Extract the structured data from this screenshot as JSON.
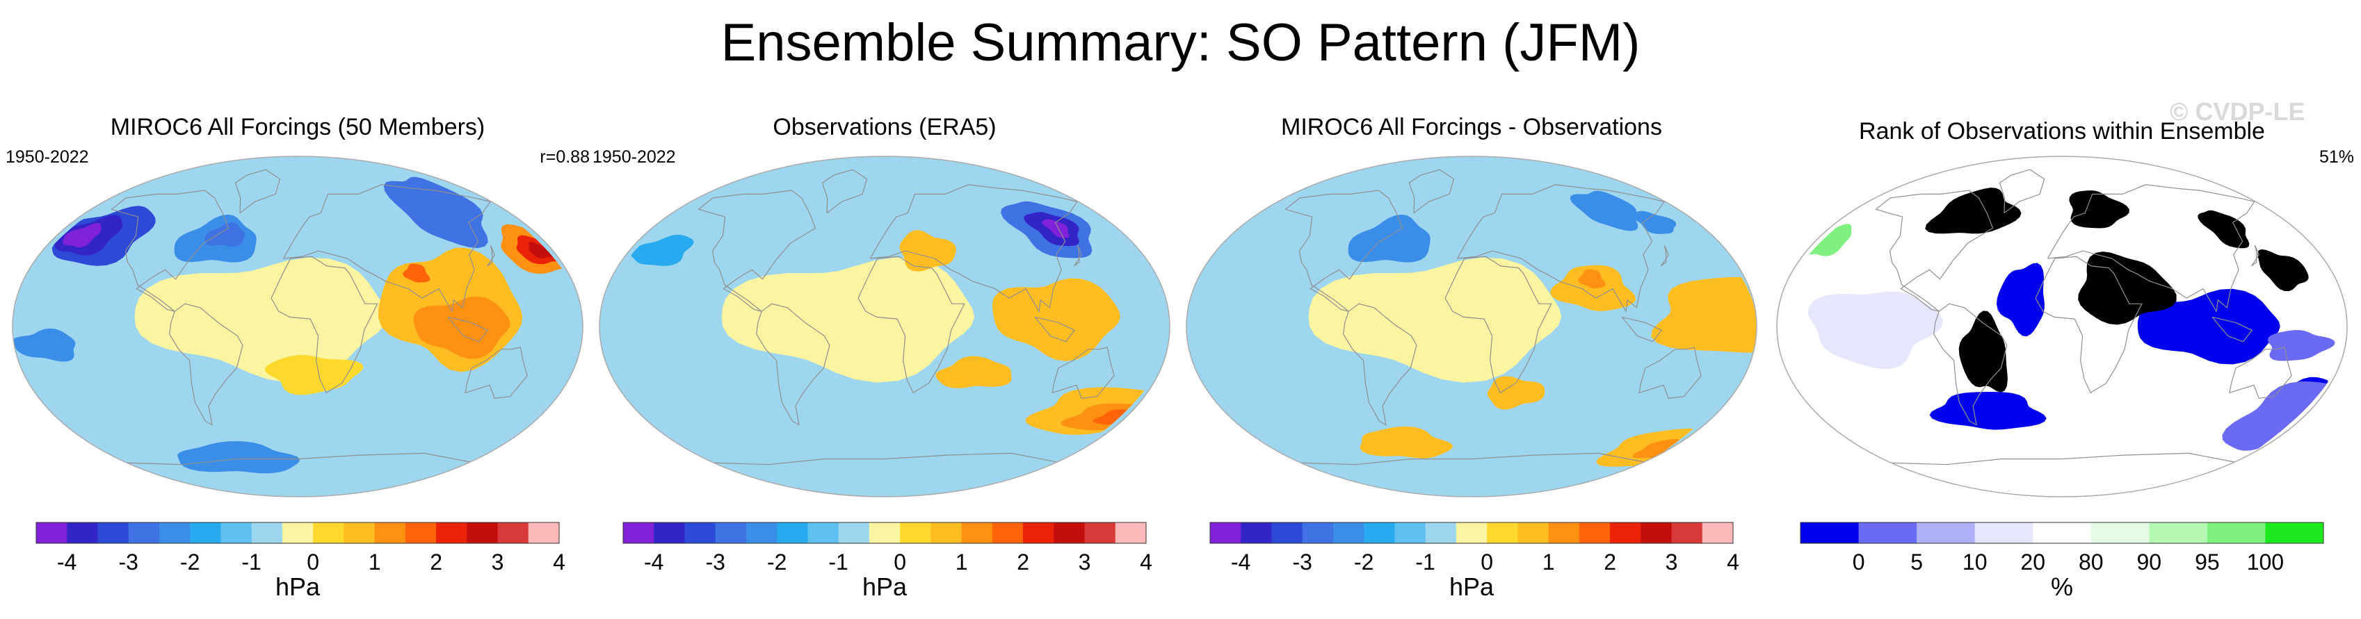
{
  "title": "Ensemble Summary: SO Pattern (JFM)",
  "watermark": "© CVDP-LE",
  "panels": [
    {
      "title": "MIROC6 All Forcings (50 Members)",
      "years": "1950-2022",
      "stat": "r=0.88",
      "colorbar": "anomaly",
      "unit": "hPa",
      "field": [
        {
          "level": 11,
          "lon": 175,
          "lat": 40,
          "rlon": 28,
          "rlat": 12
        },
        {
          "level": 13,
          "lon": 175,
          "lat": 40,
          "rlon": 17,
          "rlat": 7
        },
        {
          "level": 14,
          "lon": 175,
          "lat": 40,
          "rlon": 8,
          "rlat": 4
        },
        {
          "level": 3,
          "lon": 125,
          "lat": 62,
          "rlon": 35,
          "rlat": 18
        },
        {
          "level": 2,
          "lon": -150,
          "lat": 48,
          "rlon": 35,
          "rlat": 15
        },
        {
          "level": 1,
          "lon": -160,
          "lat": 48,
          "rlon": 22,
          "rlat": 10
        },
        {
          "level": 0,
          "lon": -165,
          "lat": 48,
          "rlon": 12,
          "rlat": 6
        },
        {
          "level": 4,
          "lon": -60,
          "lat": 45,
          "rlon": 30,
          "rlat": 12
        },
        {
          "level": 3,
          "lon": -55,
          "lat": 48,
          "rlon": 15,
          "rlat": 6
        },
        {
          "level": 10,
          "lon": 100,
          "lat": 10,
          "rlon": 45,
          "rlat": 30
        },
        {
          "level": 11,
          "lon": 105,
          "lat": 0,
          "rlon": 30,
          "rlat": 15
        },
        {
          "level": 12,
          "lon": 80,
          "lat": 28,
          "rlon": 8,
          "rlat": 5
        },
        {
          "level": 4,
          "lon": -160,
          "lat": -10,
          "rlon": 20,
          "rlat": 8
        },
        {
          "level": 4,
          "lon": -60,
          "lat": -70,
          "rlon": 60,
          "rlat": 8
        },
        {
          "level": 9,
          "lon": 10,
          "lat": -25,
          "rlon": 30,
          "rlat": 10
        }
      ]
    },
    {
      "title": "Observations (ERA5)",
      "years": "1950-2022",
      "stat": "",
      "colorbar": "anomaly",
      "unit": "hPa",
      "field": [
        {
          "level": 10,
          "lon": 170,
          "lat": -45,
          "rlon": 60,
          "rlat": 12
        },
        {
          "level": 11,
          "lon": 175,
          "lat": -48,
          "rlon": 35,
          "rlat": 7
        },
        {
          "level": 12,
          "lon": 178,
          "lat": -48,
          "rlon": 15,
          "rlat": 4
        },
        {
          "level": 3,
          "lon": 132,
          "lat": 52,
          "rlon": 30,
          "rlat": 15
        },
        {
          "level": 1,
          "lon": 135,
          "lat": 52,
          "rlon": 18,
          "rlat": 9
        },
        {
          "level": 0,
          "lon": 137,
          "lat": 52,
          "rlon": 8,
          "rlat": 5
        },
        {
          "level": 5,
          "lon": -160,
          "lat": 40,
          "rlon": 20,
          "rlat": 8
        },
        {
          "level": 10,
          "lon": 110,
          "lat": 5,
          "rlon": 40,
          "rlat": 20
        },
        {
          "level": 10,
          "lon": 30,
          "lat": 40,
          "rlon": 20,
          "rlat": 10
        },
        {
          "level": 10,
          "lon": 60,
          "lat": -25,
          "rlon": 25,
          "rlat": 8
        }
      ]
    },
    {
      "title": "MIROC6 All Forcings - Observations",
      "years": "",
      "stat": "",
      "colorbar": "anomaly",
      "unit": "hPa",
      "field": [
        {
          "level": 10,
          "lon": 175,
          "lat": 5,
          "rlon": 60,
          "rlat": 20
        },
        {
          "level": 10,
          "lon": 80,
          "lat": 20,
          "rlon": 25,
          "rlat": 12
        },
        {
          "level": 11,
          "lon": 80,
          "lat": 25,
          "rlon": 8,
          "rlat": 5
        },
        {
          "level": 10,
          "lon": 30,
          "lat": -35,
          "rlon": 20,
          "rlat": 8
        },
        {
          "level": 10,
          "lon": 175,
          "lat": -65,
          "rlon": 50,
          "rlat": 10
        },
        {
          "level": 11,
          "lon": 175,
          "lat": -65,
          "rlon": 20,
          "rlat": 5
        },
        {
          "level": 10,
          "lon": -60,
          "lat": -62,
          "rlon": 40,
          "rlat": 8
        },
        {
          "level": 4,
          "lon": -60,
          "lat": 45,
          "rlon": 30,
          "rlat": 12
        },
        {
          "level": 4,
          "lon": 120,
          "lat": 62,
          "rlon": 25,
          "rlat": 10
        },
        {
          "level": 4,
          "lon": 150,
          "lat": 55,
          "rlon": 15,
          "rlat": 6
        }
      ]
    },
    {
      "title": "Rank of Observations within Ensemble",
      "years": "",
      "stat": "51%",
      "colorbar": "rank",
      "unit": "%",
      "field": [
        {
          "level": 0,
          "lon": 95,
          "lat": 0,
          "rlon": 45,
          "rlat": 18
        },
        {
          "level": 1,
          "lon": 150,
          "lat": -10,
          "rlon": 20,
          "rlat": 8
        },
        {
          "level": 0,
          "lon": -55,
          "lat": -45,
          "rlon": 40,
          "rlat": 10
        },
        {
          "level": 0,
          "lon": -25,
          "lat": 15,
          "rlon": 15,
          "rlat": 18
        },
        {
          "level": 0,
          "lon": 175,
          "lat": -40,
          "rlon": 25,
          "rlat": 12
        },
        {
          "level": 1,
          "lon": 175,
          "lat": -48,
          "rlon": 40,
          "rlat": 18
        },
        {
          "level": 3,
          "lon": -120,
          "lat": 0,
          "rlon": 40,
          "rlat": 20
        },
        {
          "level": 9,
          "lon": 130,
          "lat": 52,
          "rlon": 15,
          "rlat": 10
        },
        {
          "level": 9,
          "lon": 30,
          "lat": 62,
          "rlon": 25,
          "rlat": 10
        },
        {
          "level": 9,
          "lon": -75,
          "lat": 60,
          "rlon": 35,
          "rlat": 12
        },
        {
          "level": 9,
          "lon": -50,
          "lat": -15,
          "rlon": 15,
          "rlat": 20
        },
        {
          "level": 9,
          "lon": 40,
          "lat": 20,
          "rlon": 30,
          "rlat": 18
        },
        {
          "level": 9,
          "lon": 150,
          "lat": 30,
          "rlon": 15,
          "rlat": 10
        },
        {
          "level": 7,
          "lon": -175,
          "lat": 45,
          "rlon": 15,
          "rlat": 8
        }
      ]
    }
  ],
  "colorbars": {
    "anomaly": {
      "colors": [
        "#8022d8",
        "#3324c8",
        "#2d4ad6",
        "#3f72e2",
        "#3a8ee8",
        "#29aaee",
        "#5ec0ee",
        "#9fd6ef",
        "#fbf4a0",
        "#ffd82e",
        "#ffbd22",
        "#ff9112",
        "#ff6508",
        "#e92208",
        "#c40e0c",
        "#d83a3a",
        "#fbb8b8"
      ],
      "labels": [
        "-4",
        "-3",
        "-2",
        "-1",
        "0",
        "1",
        "2",
        "3",
        "4"
      ],
      "label_edges": [
        1,
        3,
        5,
        7,
        9,
        11,
        13,
        15,
        17
      ]
    },
    "rank": {
      "colors": [
        "#0000ee",
        "#6a6af4",
        "#b0b0f8",
        "#e6e6fc",
        "#ffffff",
        "#e4fce4",
        "#b4f8b4",
        "#80f080",
        "#1ee81e"
      ],
      "labels": [
        "0",
        "5",
        "10",
        "20",
        "80",
        "90",
        "95",
        "100"
      ],
      "label_edges": [
        1,
        2,
        3,
        4,
        5,
        6,
        7,
        8
      ]
    }
  },
  "land_color": "#8f8f8f"
}
